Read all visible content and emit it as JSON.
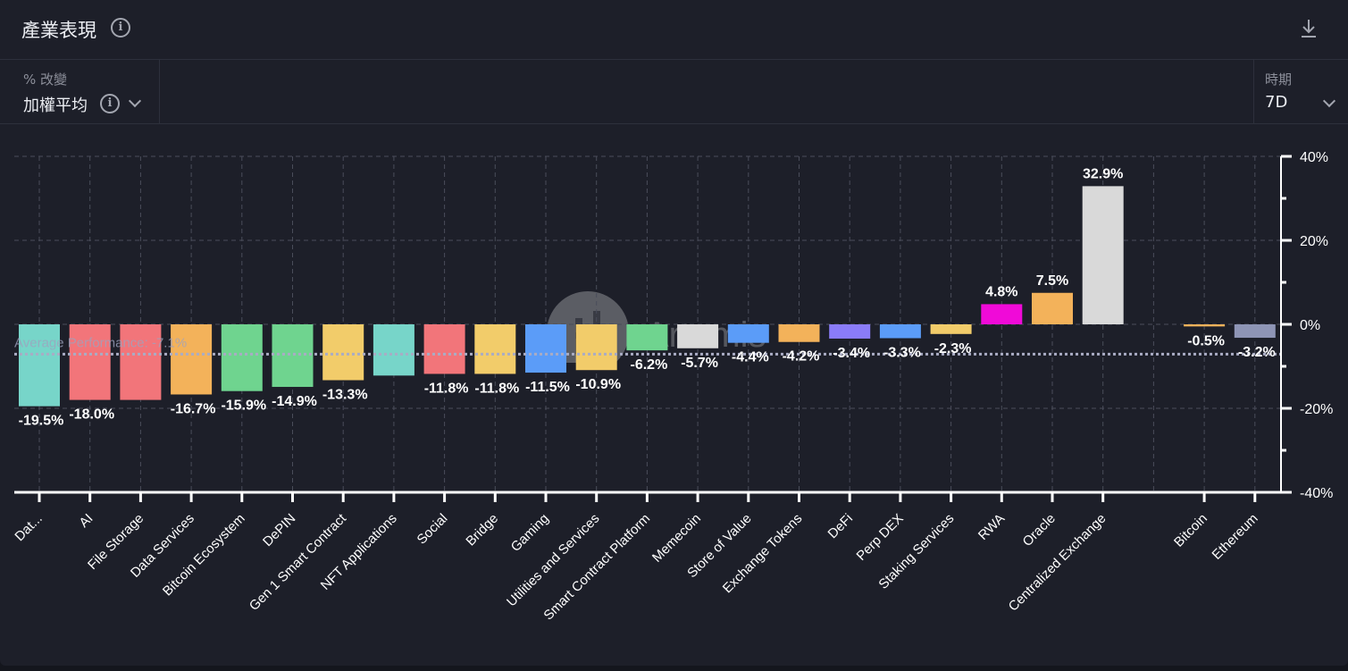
{
  "header": {
    "title": "產業表現",
    "info_icon": "info-icon",
    "download_icon": "download-icon"
  },
  "controls": {
    "metric_label": "% 改變",
    "metric_value": "加權平均",
    "period_label": "時期",
    "period_value": "7D"
  },
  "watermark": "Artemis",
  "colors": {
    "background": "#1d1f29",
    "grid": "#4a4d5a",
    "axis": "#ffffff",
    "average_line": "#a9acc4"
  },
  "chart_data": {
    "type": "bar",
    "title": "產業表現",
    "xlabel": "",
    "ylabel": "% 改變",
    "ylim": [
      -40,
      40
    ],
    "yticks": [
      40,
      20,
      0,
      -20,
      -40
    ],
    "ytick_labels": [
      "40%",
      "20%",
      "0%",
      "-20%",
      "-40%"
    ],
    "y_axis_position": "right",
    "grid": true,
    "average": {
      "value": -7.1,
      "label": "Average Performance: -7.1%"
    },
    "categories": [
      "Dat...",
      "AI",
      "File Storage",
      "Data Services",
      "Bitcoin Ecosystem",
      "DePIN",
      "Gen 1 Smart Contract",
      "NFT Applications",
      "Social",
      "Bridge",
      "Gaming",
      "Utilities and Services",
      "Smart Contract Platform",
      "Memecoin",
      "Store of Value",
      "Exchange Tokens",
      "DeFi",
      "Perp DEX",
      "Staking Services",
      "RWA",
      "Oracle",
      "Centralized Exchange",
      "",
      "Bitcoin",
      "Ethereum"
    ],
    "values": [
      -19.5,
      -18.0,
      -18.0,
      -16.7,
      -15.9,
      -14.9,
      -13.3,
      -12.2,
      -11.8,
      -11.8,
      -11.5,
      -10.9,
      -6.2,
      -5.7,
      -4.4,
      -4.2,
      -3.4,
      -3.3,
      -2.3,
      4.8,
      7.5,
      32.9,
      null,
      -0.5,
      -3.2
    ],
    "data_labels": [
      "-19.5%",
      "-18.0%",
      "",
      "-16.7%",
      "-15.9%",
      "-14.9%",
      "-13.3%",
      "",
      "-11.8%",
      "-11.8%",
      "-11.5%",
      "-10.9%",
      "-6.2%",
      "-5.7%",
      "-4.4%",
      "-4.2%",
      "-3.4%",
      "-3.3%",
      "-2.3%",
      "4.8%",
      "7.5%",
      "32.9%",
      "",
      "-0.5%",
      "-3.2%"
    ],
    "bar_colors": [
      "#77d5c9",
      "#f2757a",
      "#f2757a",
      "#f3b25a",
      "#6fd48f",
      "#6fd48f",
      "#f2cc6a",
      "#77d5c9",
      "#f2757a",
      "#f2cc6a",
      "#5b9cf8",
      "#f2cc6a",
      "#6fd48f",
      "#d9d9d9",
      "#5b9cf8",
      "#f3b25a",
      "#8a7cf8",
      "#5b9cf8",
      "#f2cc6a",
      "#f00ad8",
      "#f3b25a",
      "#d9d9d9",
      "",
      "#f3b25a",
      "#8e95b6"
    ]
  }
}
